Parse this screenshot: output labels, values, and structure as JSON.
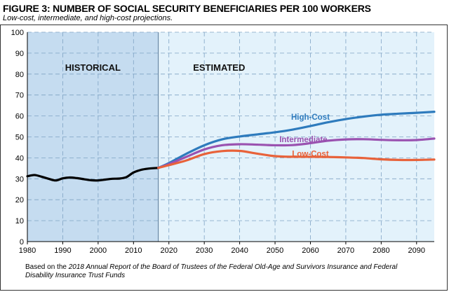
{
  "header": {
    "title": "FIGURE 3: NUMBER OF SOCIAL SECURITY BENEFICIARIES PER 100 WORKERS",
    "subtitle": "Low-cost, intermediate, and high-cost projections."
  },
  "footer": {
    "source_prefix": "Based on the ",
    "source_italic": "2018 Annual Report of the Board of Trustees of the Federal Old-Age and Survivors Insurance and Federal Disability Insurance Trust Funds"
  },
  "chart_data": {
    "type": "line",
    "title": "FIGURE 3: NUMBER OF SOCIAL SECURITY BENEFICIARIES PER 100 WORKERS",
    "subtitle": "Low-cost, intermediate, and high-cost projections.",
    "xlabel": "",
    "ylabel": "",
    "xlim": [
      1980,
      2095
    ],
    "ylim": [
      0,
      100
    ],
    "x_ticks": [
      1980,
      1990,
      2000,
      2010,
      2020,
      2030,
      2040,
      2050,
      2060,
      2070,
      2080,
      2090
    ],
    "y_ticks": [
      0,
      10,
      20,
      30,
      40,
      50,
      60,
      70,
      80,
      90,
      100
    ],
    "grid": true,
    "regions": [
      {
        "label": "HISTORICAL",
        "x_start": 1980,
        "x_end": 2017,
        "color": "#c5dcf0"
      },
      {
        "label": "ESTIMATED",
        "x_start": 2017,
        "x_end": 2095,
        "color": "#e3f2fb"
      }
    ],
    "series": [
      {
        "name": "",
        "color": "#000000",
        "x": [
          1980,
          1982,
          1984,
          1986,
          1988,
          1990,
          1992,
          1994,
          1996,
          1998,
          2000,
          2002,
          2004,
          2006,
          2008,
          2010,
          2012,
          2014,
          2017
        ],
        "y": [
          31.2,
          31.8,
          31.0,
          30.0,
          29.2,
          30.2,
          30.6,
          30.3,
          29.8,
          29.3,
          29.2,
          29.6,
          30.0,
          30.1,
          30.8,
          33.0,
          34.2,
          34.8,
          35.2
        ]
      },
      {
        "name": "High-Cost",
        "color": "#2e7bbd",
        "x": [
          2017,
          2020,
          2025,
          2030,
          2035,
          2040,
          2045,
          2050,
          2055,
          2060,
          2065,
          2070,
          2075,
          2080,
          2085,
          2090,
          2095
        ],
        "y": [
          35.2,
          37.5,
          42.0,
          46.0,
          48.8,
          50.2,
          51.2,
          52.2,
          53.5,
          55.2,
          57.0,
          58.5,
          59.7,
          60.6,
          61.1,
          61.5,
          62.0
        ]
      },
      {
        "name": "Intermediate",
        "color": "#9a52b0",
        "x": [
          2017,
          2020,
          2025,
          2030,
          2035,
          2040,
          2045,
          2050,
          2055,
          2060,
          2065,
          2070,
          2075,
          2080,
          2085,
          2090,
          2095
        ],
        "y": [
          35.2,
          37.0,
          40.5,
          44.0,
          46.0,
          46.5,
          46.3,
          46.0,
          46.1,
          47.0,
          48.2,
          48.8,
          48.9,
          48.6,
          48.4,
          48.5,
          49.2
        ]
      },
      {
        "name": "Low-Cost",
        "color": "#e8623a",
        "x": [
          2017,
          2020,
          2025,
          2030,
          2035,
          2040,
          2045,
          2050,
          2055,
          2060,
          2065,
          2070,
          2075,
          2080,
          2085,
          2090,
          2095
        ],
        "y": [
          35.2,
          36.5,
          38.8,
          41.8,
          43.2,
          43.3,
          42.0,
          40.8,
          40.5,
          40.5,
          40.4,
          40.2,
          39.9,
          39.3,
          39.0,
          39.0,
          39.2
        ]
      }
    ],
    "annotations": [
      {
        "text": "HISTORICAL",
        "kind": "region"
      },
      {
        "text": "ESTIMATED",
        "kind": "region"
      },
      {
        "text": "High-Cost",
        "kind": "series",
        "series": 1,
        "x": 2060,
        "y": 59.5
      },
      {
        "text": "Intermediate",
        "kind": "series",
        "series": 2,
        "x": 2058,
        "y": 48.8
      },
      {
        "text": "Low-Cost",
        "kind": "series",
        "series": 3,
        "x": 2060,
        "y": 42.0
      }
    ]
  }
}
